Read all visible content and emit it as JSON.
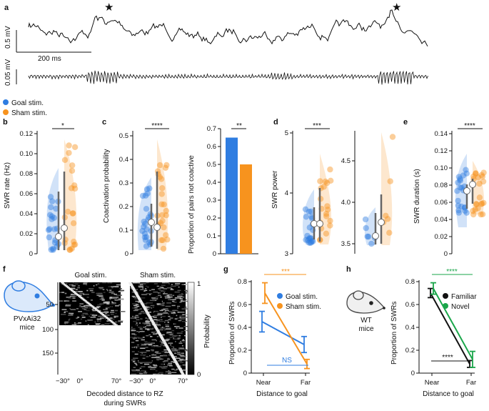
{
  "colors": {
    "goal": "#2f7de1",
    "sham": "#f7931e",
    "familiar": "#111111",
    "novel": "#1aa64a",
    "grey": "#666666"
  },
  "panel_a": {
    "label": "a",
    "scale_mv": "0.5 mV",
    "scale_ms": "200 ms",
    "filtered_mv": "0.05 mV",
    "legend_goal": "Goal stim.",
    "legend_sham": "Sham stim."
  },
  "panel_b": {
    "label": "b",
    "ylabel": "SWR rate (Hz)",
    "yticks": [
      "0",
      "0.02",
      "0.04",
      "0.06",
      "0.08",
      "0.10",
      "0.12"
    ],
    "sig": "*"
  },
  "panel_c": {
    "label": "c",
    "ylabel": "Coactivation probability",
    "yticks": [
      "0",
      "0.1",
      "0.2",
      "0.3",
      "0.4",
      "0.5"
    ],
    "sig": "****",
    "bar_ylabel": "Proportion of pairs not coactive",
    "bar_yticks": [
      "0",
      "0.1",
      "0.2",
      "0.3",
      "0.4",
      "0.5",
      "0.6",
      "0.7"
    ],
    "bar_sig": "**"
  },
  "panel_d": {
    "label": "d",
    "ylabel": "SWR power",
    "yticks": [
      "3",
      "4",
      "5"
    ],
    "yticks2": [
      "3.5",
      "4.0",
      "4.5"
    ],
    "sig": "***"
  },
  "panel_e": {
    "label": "e",
    "ylabel": "SWR duration (s)",
    "yticks": [
      "0",
      "0.02",
      "0.04",
      "0.06",
      "0.08",
      "0.10",
      "0.12",
      "0.14"
    ],
    "sig": "****"
  },
  "panel_f": {
    "label": "f",
    "mouse_label_1": "PVxAi32",
    "mouse_label_2": "mice",
    "title_goal": "Goal stim.",
    "title_sham": "Sham stim.",
    "yticks": [
      "50",
      "100",
      "150"
    ],
    "xticks": [
      "−30°",
      "0°",
      "70°"
    ],
    "xlabel_1": "Decoded distance to RZ",
    "xlabel_2": "during SWRs",
    "cbar_label": "Probability",
    "cbar_ticks": [
      "1",
      "0"
    ]
  },
  "panel_g": {
    "label": "g",
    "ylabel": "Proportion of SWRs",
    "xlabel": "Distance to goal",
    "xticks": [
      "Near",
      "Far"
    ],
    "yticks": [
      "0",
      "0.2",
      "0.4",
      "0.6",
      "0.8"
    ],
    "legend_goal": "Goal stim.",
    "legend_sham": "Sham stim.",
    "sig_top": "***",
    "sig_ns": "NS"
  },
  "panel_h": {
    "label": "h",
    "ylabel": "Proportion of SWRs",
    "xlabel": "Distance to goal",
    "xticks": [
      "Near",
      "Far"
    ],
    "yticks": [
      "0",
      "0.2",
      "0.4",
      "0.6",
      "0.8"
    ],
    "legend_familiar": "Familiar",
    "legend_novel": "Novel",
    "sig_top": "****",
    "sig_bottom": "****",
    "mouse_label_1": "WT",
    "mouse_label_2": "mice"
  },
  "chart_data": [
    {
      "type": "bar",
      "title": "Proportion of pairs not coactive",
      "categories": [
        "Goal stim.",
        "Sham stim."
      ],
      "values": [
        0.65,
        0.5
      ],
      "ylim": [
        0,
        0.7
      ]
    },
    {
      "type": "line",
      "panel": "g",
      "categories": [
        "Near",
        "Far"
      ],
      "ylim": [
        0,
        0.8
      ],
      "series": [
        {
          "name": "Goal stim.",
          "values": [
            0.45,
            0.25
          ],
          "errors": [
            0.09,
            0.07
          ]
        },
        {
          "name": "Sham stim.",
          "values": [
            0.7,
            0.08
          ],
          "errors": [
            0.09,
            0.04
          ]
        }
      ]
    },
    {
      "type": "line",
      "panel": "h",
      "categories": [
        "Near",
        "Far"
      ],
      "ylim": [
        0,
        0.8
      ],
      "series": [
        {
          "name": "Familiar",
          "values": [
            0.7,
            0.08
          ],
          "errors": [
            0.04,
            0.03
          ]
        },
        {
          "name": "Novel",
          "values": [
            0.74,
            0.12
          ],
          "errors": [
            0.05,
            0.07
          ]
        }
      ]
    }
  ]
}
